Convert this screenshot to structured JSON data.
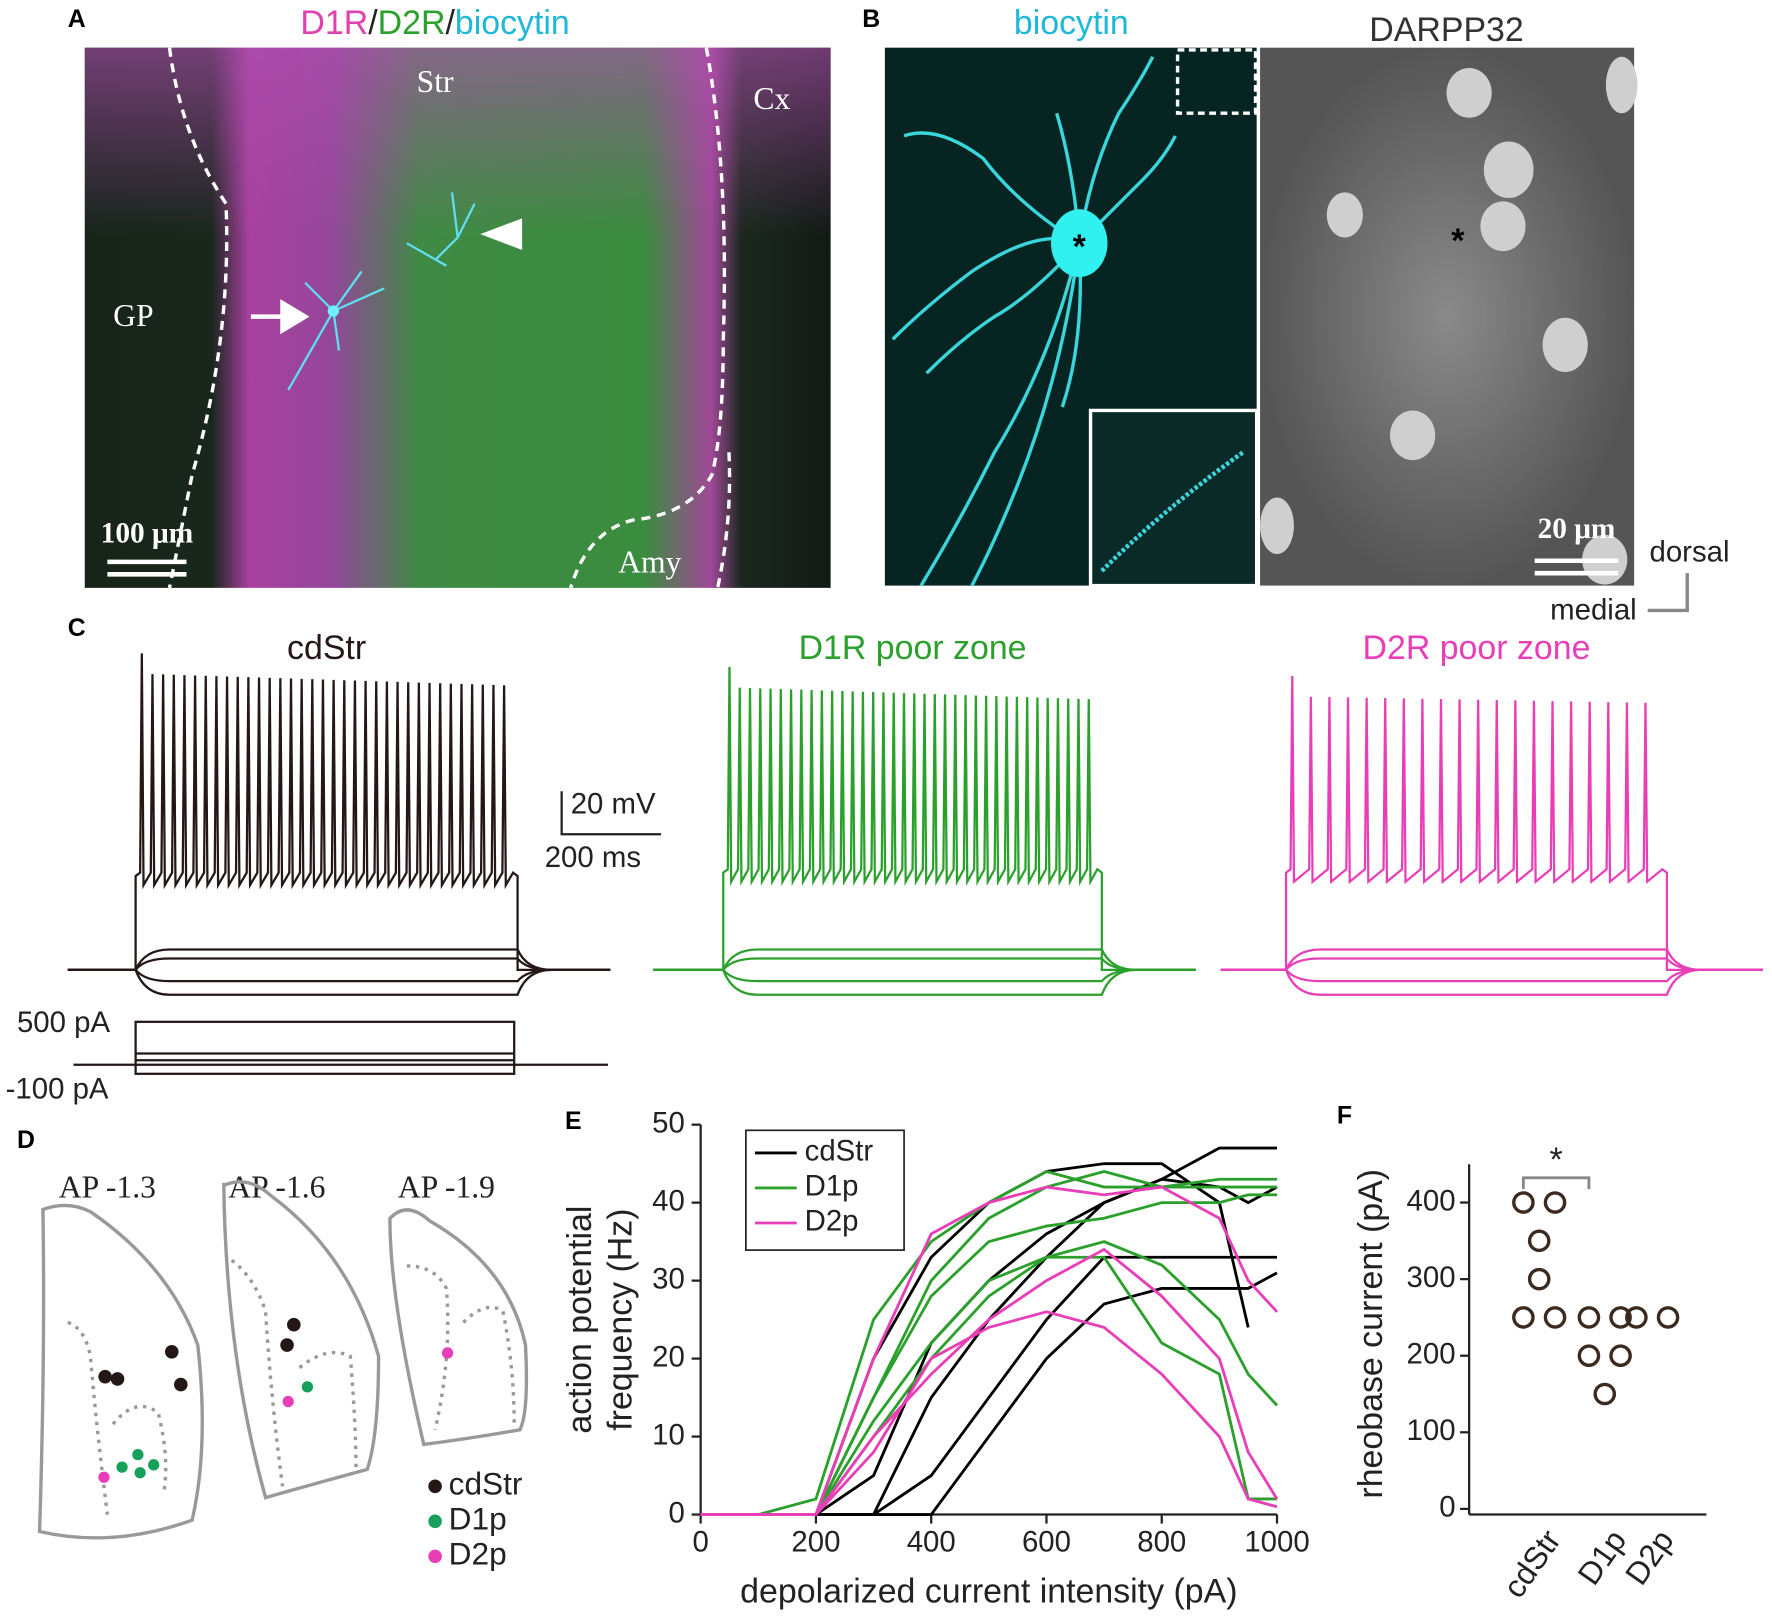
{
  "panels": {
    "A": {
      "label": "A",
      "title_parts": [
        {
          "text": "D1R",
          "color": "#e040b0"
        },
        {
          "text": "/",
          "color": "#222222"
        },
        {
          "text": "D2R",
          "color": "#2ca02c"
        },
        {
          "text": "/",
          "color": "#222222"
        },
        {
          "text": "biocytin",
          "color": "#1fb8d8"
        }
      ],
      "regions": [
        "Str",
        "Cx",
        "GP",
        "Amy"
      ],
      "scale_bar": "100 μm"
    },
    "B": {
      "label": "B",
      "left_title": "biocytin",
      "right_title": "DARPP32",
      "scale_bar": "20 μm",
      "orientation": [
        "dorsal",
        "medial"
      ]
    },
    "C": {
      "label": "C",
      "traces": [
        {
          "name": "cdStr",
          "color": "#231815"
        },
        {
          "name": "D1R poor zone",
          "color": "#2ca02c"
        },
        {
          "name": "D2R poor zone",
          "color": "#e83fb8"
        }
      ],
      "scale_v": "20 mV",
      "scale_t": "200 ms",
      "current_labels": [
        "500 pA",
        "-100 pA"
      ]
    },
    "D": {
      "label": "D",
      "sections": [
        "AP -1.3",
        "AP -1.6",
        "AP -1.9"
      ],
      "legend": [
        {
          "name": "cdStr",
          "color": "#231815"
        },
        {
          "name": "D1p",
          "color": "#16a05a"
        },
        {
          "name": "D2p",
          "color": "#e83fb8"
        }
      ]
    },
    "E": {
      "label": "E"
    },
    "F": {
      "label": "F"
    }
  },
  "chart_data": [
    {
      "type": "line",
      "xlabel": "depolarized current intensity (pA)",
      "ylabel": [
        "action potential",
        "frequency (Hz)"
      ],
      "x": [
        0,
        100,
        200,
        300,
        400,
        500,
        600,
        700,
        800,
        900,
        950,
        1000
      ],
      "xlim": [
        0,
        1000
      ],
      "xticks": [
        0,
        200,
        400,
        600,
        800,
        1000
      ],
      "ylim": [
        0,
        50
      ],
      "yticks": [
        0,
        10,
        20,
        30,
        40,
        50
      ],
      "legend": "upper left",
      "series": [
        {
          "name": "cdStr",
          "color": "#000000",
          "values": [
            0,
            0,
            0,
            0,
            0,
            10,
            20,
            27,
            29,
            29,
            29,
            31
          ]
        },
        {
          "name": "cdStr",
          "color": "#000000",
          "values": [
            0,
            0,
            0,
            0,
            5,
            15,
            25,
            33,
            33,
            33,
            33,
            33
          ]
        },
        {
          "name": "cdStr",
          "color": "#000000",
          "values": [
            0,
            0,
            0,
            0,
            15,
            25,
            33,
            40,
            43,
            47,
            47,
            47
          ]
        },
        {
          "name": "cdStr",
          "color": "#000000",
          "values": [
            0,
            0,
            0,
            20,
            33,
            40,
            44,
            45,
            45,
            40,
            24,
            null
          ]
        },
        {
          "name": "cdStr",
          "color": "#000000",
          "values": [
            0,
            0,
            0,
            5,
            22,
            30,
            36,
            40,
            43,
            42,
            40,
            42
          ]
        },
        {
          "name": "D1p",
          "color": "#2ca02c",
          "values": [
            0,
            0,
            2,
            25,
            35,
            40,
            44,
            42,
            42,
            42,
            42,
            42
          ]
        },
        {
          "name": "D1p",
          "color": "#2ca02c",
          "values": [
            0,
            0,
            0,
            15,
            28,
            35,
            37,
            38,
            40,
            40,
            41,
            41
          ]
        },
        {
          "name": "D1p",
          "color": "#2ca02c",
          "values": [
            0,
            0,
            0,
            12,
            22,
            30,
            33,
            35,
            32,
            25,
            18,
            14
          ]
        },
        {
          "name": "D1p",
          "color": "#2ca02c",
          "values": [
            0,
            0,
            0,
            10,
            20,
            28,
            33,
            33,
            22,
            18,
            2,
            2
          ]
        },
        {
          "name": "D1p",
          "color": "#2ca02c",
          "values": [
            0,
            0,
            0,
            15,
            30,
            38,
            42,
            44,
            42,
            43,
            43,
            43
          ]
        },
        {
          "name": "D2p",
          "color": "#e83fb8",
          "values": [
            0,
            0,
            0,
            20,
            36,
            40,
            42,
            41,
            42,
            38,
            30,
            26
          ]
        },
        {
          "name": "D2p",
          "color": "#e83fb8",
          "values": [
            0,
            0,
            0,
            10,
            18,
            25,
            30,
            34,
            28,
            20,
            8,
            2
          ]
        },
        {
          "name": "D2p",
          "color": "#e83fb8",
          "values": [
            0,
            0,
            0,
            8,
            20,
            24,
            26,
            24,
            18,
            10,
            2,
            1
          ]
        }
      ]
    },
    {
      "type": "strip",
      "ylabel": "rheobase current (pA)",
      "categories": [
        "cdStr",
        "D1p",
        "D2p"
      ],
      "values": [
        [
          400,
          400,
          350,
          300,
          250,
          250
        ],
        [
          250,
          250,
          200,
          200,
          150
        ],
        [
          250,
          250
        ]
      ],
      "color": "#3a2a20",
      "ylim": [
        0,
        450
      ],
      "yticks": [
        0,
        100,
        200,
        300,
        400
      ],
      "annotation": "*"
    }
  ]
}
